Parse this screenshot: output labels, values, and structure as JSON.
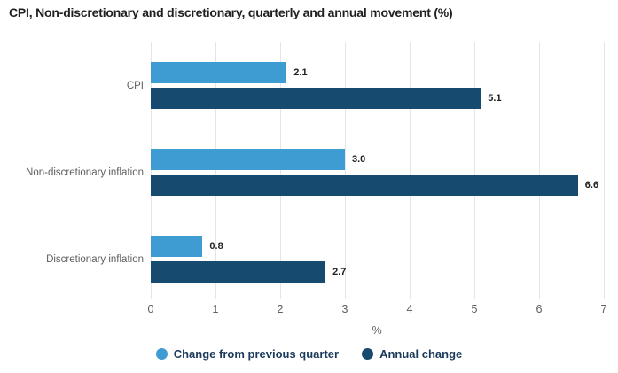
{
  "title": "CPI, Non-discretionary and discretionary, quarterly and annual movement (%)",
  "chart_data": {
    "type": "bar",
    "orientation": "horizontal",
    "title": "CPI, Non-discretionary and discretionary, quarterly and annual movement (%)",
    "categories": [
      "CPI",
      "Non-discretionary inflation",
      "Discretionary inflation"
    ],
    "series": [
      {
        "name": "Change from previous quarter",
        "color": "#3F9CD2",
        "values": [
          2.1,
          3.0,
          0.8
        ]
      },
      {
        "name": "Annual change",
        "color": "#174A6F",
        "values": [
          5.1,
          6.6,
          2.7
        ]
      }
    ],
    "xlabel": "%",
    "xlim": [
      0,
      7
    ],
    "xticks": [
      0,
      1,
      2,
      3,
      4,
      5,
      6,
      7
    ],
    "grid": true,
    "value_label_decimals": 1,
    "legend_position": "bottom",
    "colors": {
      "gridline": "#e4e4ec",
      "axis_text": "#5e5e5e",
      "value_label_text": "#212121",
      "legend_text": "#1b3a5c",
      "title_text": "#1f1f1f"
    }
  }
}
